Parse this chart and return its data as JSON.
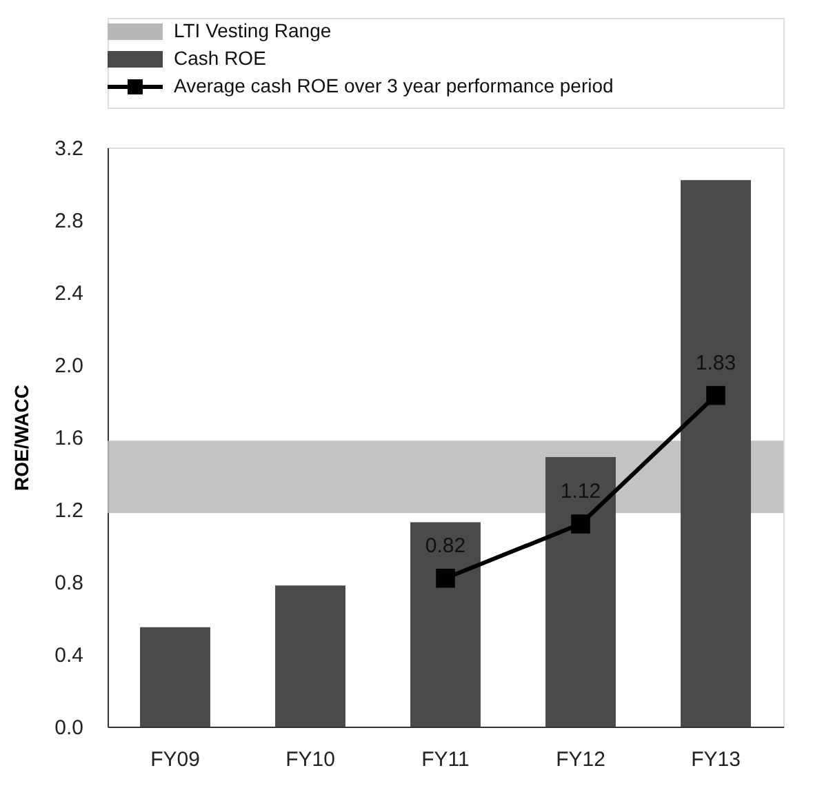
{
  "chart_data": {
    "type": "bar",
    "categories": [
      "FY09",
      "FY10",
      "FY11",
      "FY12",
      "FY13"
    ],
    "ylabel": "ROE/WACC",
    "ylim": [
      0,
      3.2
    ],
    "yticks": [
      {
        "value": 0,
        "label": "0.0"
      },
      0.4,
      0.8,
      1.2,
      1.6,
      {
        "value": 2,
        "label": "2.0"
      },
      2.4,
      2.8,
      3.2
    ],
    "series": [
      {
        "name": "Cash ROE",
        "color": "#4a4a4a",
        "values": [
          0.55,
          0.78,
          1.13,
          1.49,
          3.02
        ]
      },
      {
        "name": "Average cash ROE over 3 year performance period",
        "type": "line",
        "color": "#000000",
        "marker": "square",
        "values": [
          null,
          null,
          0.82,
          1.12,
          1.83
        ],
        "value_labels": [
          null,
          null,
          "0.82",
          "1.12",
          "1.83"
        ]
      }
    ],
    "bands": [
      {
        "axis": "y",
        "from": 1.18,
        "to": 1.58,
        "label": "LTI Vesting Range",
        "color": "#b8b8b8"
      }
    ],
    "legend": "top left",
    "grid": false
  }
}
